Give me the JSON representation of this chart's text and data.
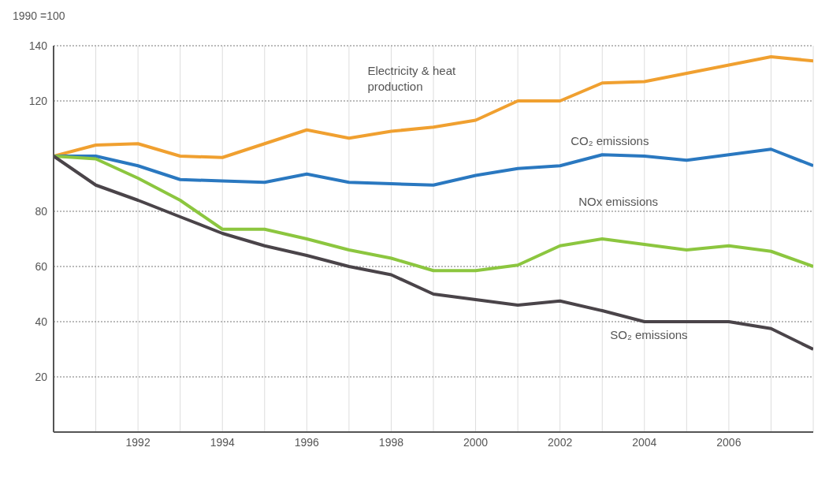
{
  "chart_data": {
    "type": "line",
    "ylabel": "1990 =100",
    "x": [
      1990,
      1991,
      1992,
      1993,
      1994,
      1995,
      1996,
      1997,
      1998,
      1999,
      2000,
      2001,
      2002,
      2003,
      2004,
      2005,
      2006,
      2007,
      2008
    ],
    "series": [
      {
        "name": "Electricity & heat production",
        "color": "#f0a030",
        "values": [
          100,
          104,
          104.5,
          100,
          99.5,
          104.5,
          109.5,
          106.5,
          109,
          110.5,
          113,
          120,
          120,
          126.5,
          127,
          130,
          133,
          136,
          134.5
        ]
      },
      {
        "name": "CO₂ emissions",
        "color": "#2a78c0",
        "values": [
          100,
          100,
          96.5,
          91.5,
          91,
          90.5,
          93.5,
          90.5,
          90,
          89.5,
          93,
          95.5,
          96.5,
          100.5,
          100,
          98.5,
          100.5,
          102.5,
          96.5
        ]
      },
      {
        "name": "NOx emissions",
        "color": "#8cc63f",
        "values": [
          100,
          99,
          92,
          84,
          73.5,
          73.5,
          70,
          66,
          63,
          58.5,
          58.5,
          60.5,
          67.5,
          70,
          68,
          66,
          67.5,
          65.5,
          60
        ]
      },
      {
        "name": "SO₂ emissions",
        "color": "#4a4449",
        "values": [
          100,
          89.5,
          84,
          78,
          72,
          67.5,
          64,
          60,
          57,
          50,
          48,
          46,
          47.5,
          44,
          40,
          40,
          40,
          37.5,
          30
        ]
      }
    ],
    "xlim": [
      1990,
      2008
    ],
    "xticks": [
      {
        "value": 1991,
        "label": null
      },
      1992,
      {
        "value": 1993,
        "label": null
      },
      1994,
      {
        "value": 1995,
        "label": null
      },
      1996,
      {
        "value": 1997,
        "label": null
      },
      1998,
      {
        "value": 1999,
        "label": null
      },
      2000,
      {
        "value": 2001,
        "label": null
      },
      2002,
      {
        "value": 2003,
        "label": null
      },
      2004,
      {
        "value": 2005,
        "label": null
      },
      2006,
      {
        "value": 2007,
        "label": null
      }
    ],
    "ylim": [
      0,
      140
    ],
    "yticks": [
      20,
      40,
      60,
      80,
      120,
      140
    ],
    "grid": true,
    "marker": "none",
    "line_style": "solid"
  }
}
